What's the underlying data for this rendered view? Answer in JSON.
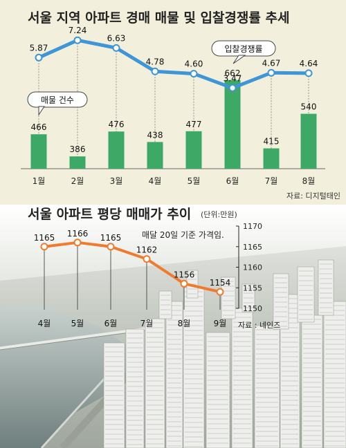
{
  "chart_data": [
    {
      "type": "bar",
      "title": "서울 지역 아파트 경매 매물 및 입찰경쟁률 추세",
      "categories": [
        "1월",
        "2월",
        "3월",
        "4월",
        "5월",
        "6월",
        "7월",
        "8월"
      ],
      "series": [
        {
          "name": "매물 건수",
          "type": "bar",
          "values": [
            466,
            386,
            476,
            438,
            477,
            662,
            415,
            540
          ]
        },
        {
          "name": "입찰경쟁률",
          "type": "line",
          "values": [
            5.87,
            7.24,
            6.63,
            4.78,
            4.6,
            3.47,
            4.67,
            4.64
          ]
        }
      ],
      "source": "자료: 디지털태인",
      "colors": {
        "bar": "#3ea867",
        "line": "#3f95d6"
      }
    },
    {
      "type": "line",
      "title": "서울 아파트 평당 매매가 추이",
      "unit": "(단위:만원)",
      "annotation": "매달 20일 기준 가격임.",
      "categories": [
        "4월",
        "5월",
        "6월",
        "7월",
        "8월",
        "9월"
      ],
      "series": [
        {
          "values": [
            1165,
            1166,
            1165,
            1162,
            1156,
            1154
          ]
        }
      ],
      "ylim": [
        1150,
        1170
      ],
      "yticks": [
        1150,
        1155,
        1160,
        1165,
        1170
      ],
      "source": "자료 : 네인즈",
      "colors": {
        "line": "#f07a2e"
      }
    }
  ]
}
